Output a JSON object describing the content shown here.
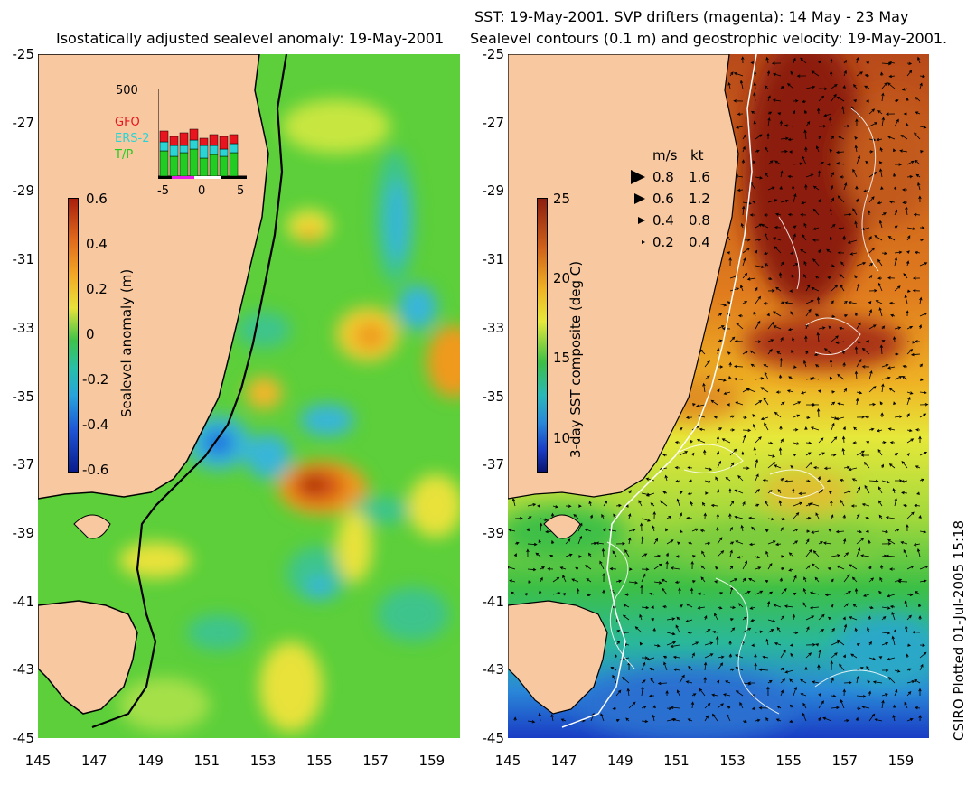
{
  "left": {
    "title": "Isostatically adjusted sealevel anomaly: 19-May-2001",
    "colorbar": {
      "label": "Sealevel anomaly (m)",
      "ticks": [
        "0.6",
        "0.4",
        "0.2",
        "0",
        "-0.2",
        "-0.4",
        "-0.6"
      ],
      "range": [
        -0.6,
        0.6
      ]
    },
    "inset": {
      "ymax_label": "500",
      "legend": [
        "GFO",
        "ERS-2",
        "T/P"
      ],
      "legend_colors": [
        "#e8141e",
        "#2ad4d4",
        "#22cc22"
      ],
      "xticks": [
        "-5",
        "0",
        "5"
      ]
    }
  },
  "right": {
    "title_line1": "SST: 19-May-2001. SVP drifters (magenta): 14 May - 23 May",
    "title_line2": "Sealevel contours (0.1 m) and geostrophic velocity: 19-May-2001.",
    "colorbar": {
      "label": "3-day SST composite (deg C)",
      "ticks": [
        "25",
        "20",
        "15",
        "10"
      ],
      "range": [
        8,
        25
      ]
    },
    "velocity_legend": {
      "header_ms": "m/s",
      "header_kt": "kt",
      "rows": [
        {
          "ms": "0.8",
          "kt": "1.6"
        },
        {
          "ms": "0.6",
          "kt": "1.2"
        },
        {
          "ms": "0.4",
          "kt": "0.8"
        },
        {
          "ms": "0.2",
          "kt": "0.4"
        }
      ]
    }
  },
  "axes": {
    "yticks": [
      "-25",
      "-27",
      "-29",
      "-31",
      "-33",
      "-35",
      "-37",
      "-39",
      "-41",
      "-43",
      "-45"
    ],
    "xticks": [
      "145",
      "147",
      "149",
      "151",
      "153",
      "155",
      "157",
      "159"
    ],
    "lat_range": [
      -45,
      -25
    ],
    "lon_range": [
      145,
      160
    ]
  },
  "footer": "CSIRO Plotted 01-Jul-2005 15:18",
  "colors": {
    "land": "#f8c8a0",
    "coastline": "#000000"
  }
}
